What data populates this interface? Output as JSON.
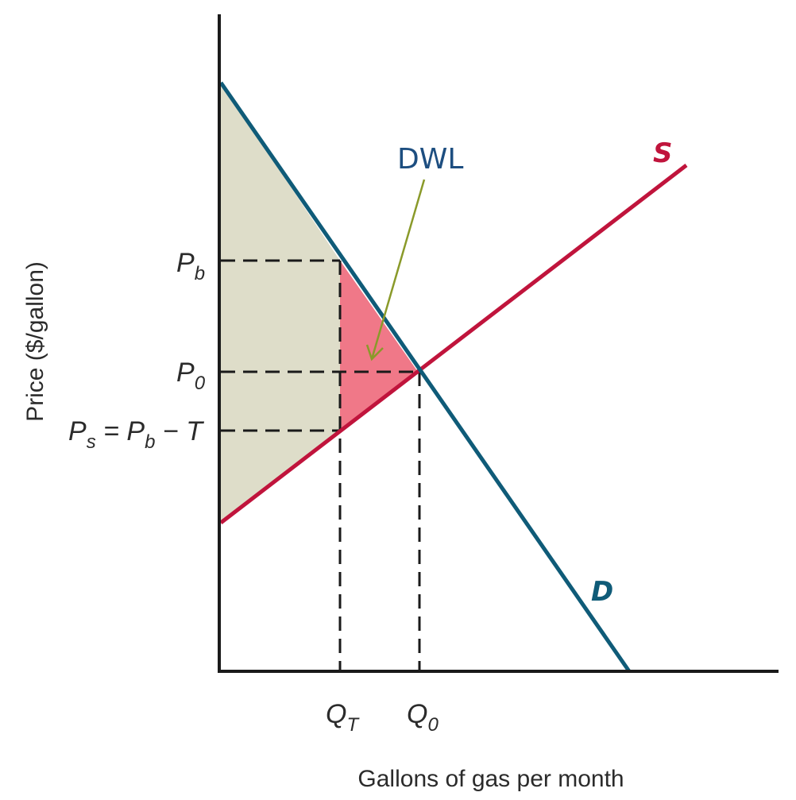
{
  "axes": {
    "y_title": "Price ($/gallon)",
    "x_title": "Gallons of gas per month"
  },
  "price_labels": {
    "pb_main": "P",
    "pb_sub": "b",
    "p0_main": "P",
    "p0_sub": "0",
    "ps_main": "P",
    "ps_sub": "s",
    "ps_eq": " = P",
    "ps_eq_sub": "b",
    "ps_tail": " − T"
  },
  "quantity_labels": {
    "qt_main": "Q",
    "qt_sub": "T",
    "q0_main": "Q",
    "q0_sub": "0"
  },
  "curves": {
    "supply_label": "S",
    "demand_label": "D"
  },
  "annotation": {
    "dwl": "DWL"
  },
  "colors": {
    "supply": "#c0143c",
    "demand": "#0f5b78",
    "surplus_fill": "#deddc9",
    "dwl_fill": "#f07888",
    "dwl_text": "#1d4e80",
    "arrow": "#8a9a2a",
    "axis": "#1a1a1a",
    "dash": "#1a1a1a"
  }
}
